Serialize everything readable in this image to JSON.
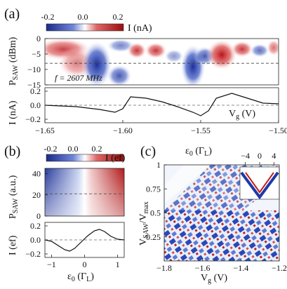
{
  "panels": {
    "a": {
      "label": "(a)",
      "colorbar_ticks": [
        "-0.2",
        "0.0",
        "0.2"
      ],
      "colorbar_label": "I (nA)",
      "map_ylabel": "P",
      "map_ylabel_sub": "SAW",
      "map_ylabel_unit": " (dBm)",
      "annotation": "f = 2607 MHz",
      "trace_ylabel": "I (nA)",
      "xlabel": "V",
      "xlabel_sub": "g",
      "xlabel_unit": " (V)"
    },
    "b": {
      "label": "(b)",
      "colorbar_ticks": [
        "-0.2",
        "0.0",
        "0.2"
      ],
      "colorbar_label": "I (ef)",
      "map_ylabel": "P",
      "map_ylabel_sub": "SAW",
      "map_ylabel_unit": " (a.u.)",
      "trace_ylabel": "I (ef)",
      "xlabel": "ε",
      "xlabel_sub": "0",
      "xlabel_unit": " (Γ",
      "xlabel_unit_sub": "L",
      "xlabel_close": ")"
    },
    "c": {
      "label": "(c)",
      "top_axis_label": "ε",
      "top_axis_sub": "0",
      "top_axis_unit": " (Γ",
      "top_axis_unit_sub": "L",
      "top_axis_close": ")",
      "ylabel": "V",
      "ylabel_sub1": "SAW",
      "ylabel_mid": "/V",
      "ylabel_sub2": "max",
      "xlabel": "V",
      "xlabel_sub": "g",
      "xlabel_unit": " (V)"
    }
  },
  "chart_data": [
    {
      "type": "heatmap",
      "panel": "a",
      "x": {
        "label": "Vg (V)",
        "range": [
          -1.65,
          -1.5
        ]
      },
      "y": {
        "label": "PSAW (dBm)",
        "range": [
          -15,
          0
        ],
        "ticks": [
          -15,
          -10,
          -5,
          0
        ]
      },
      "colorbar": {
        "label": "I (nA)",
        "range": [
          -0.2,
          0.2
        ],
        "colors": [
          "#2233aa",
          "#ffffff",
          "#cc1111"
        ]
      },
      "reference_line_y": -8
    },
    {
      "type": "line",
      "panel": "a",
      "x": [
        -1.65,
        -1.63,
        -1.615,
        -1.605,
        -1.6,
        -1.595,
        -1.585,
        -1.575,
        -1.565,
        -1.555,
        -1.55,
        -1.545,
        -1.54,
        -1.53,
        -1.52,
        -1.51,
        -1.5
      ],
      "y": [
        0.0,
        -0.02,
        -0.06,
        -0.1,
        -0.05,
        0.12,
        0.1,
        0.05,
        -0.02,
        -0.1,
        -0.15,
        -0.08,
        0.1,
        0.17,
        0.1,
        0.03,
        0.02
      ],
      "xlim": [
        -1.65,
        -1.5
      ],
      "xticks": [
        -1.65,
        -1.6,
        -1.55,
        -1.5
      ],
      "ylim": [
        -0.25,
        0.25
      ],
      "yticks": [
        -0.2,
        0.0,
        0.2
      ]
    },
    {
      "type": "heatmap",
      "panel": "b",
      "x": {
        "label": "ε0 (ΓL)",
        "range": [
          -1.2,
          1.2
        ]
      },
      "y": {
        "label": "PSAW (a.u.)",
        "range": [
          0,
          45
        ],
        "ticks": [
          0,
          20,
          40
        ]
      },
      "colorbar": {
        "label": "I (ef)",
        "range": [
          -0.2,
          0.2
        ],
        "colors": [
          "#2233aa",
          "#ffffff",
          "#cc1111"
        ]
      },
      "reference_line_y": 21
    },
    {
      "type": "line",
      "panel": "b",
      "x": [
        -1.2,
        -1.0,
        -0.8,
        -0.6,
        -0.45,
        -0.3,
        -0.1,
        0.1,
        0.3,
        0.45,
        0.6,
        0.8,
        1.0,
        1.2
      ],
      "y": [
        0.0,
        -0.02,
        -0.08,
        -0.14,
        -0.16,
        -0.12,
        -0.03,
        0.06,
        0.13,
        0.15,
        0.12,
        0.05,
        0.01,
        0.0
      ],
      "xlim": [
        -1.2,
        1.2
      ],
      "xticks": [
        -1,
        0,
        1
      ],
      "ylim": [
        -0.25,
        0.25
      ],
      "yticks": [
        -0.2,
        0.0,
        0.2
      ]
    },
    {
      "type": "heatmap",
      "panel": "c",
      "x": {
        "label": "Vg (V)",
        "range": [
          -1.8,
          -1.2
        ],
        "ticks": [
          -1.8,
          -1.6,
          -1.4,
          -1.2
        ]
      },
      "y": {
        "label": "VSAW/Vmax",
        "range": [
          0,
          1
        ],
        "ticks": [
          0.25,
          0.5,
          0.75,
          1
        ]
      },
      "inset_axis": {
        "label": "ε0 (ΓL)",
        "ticks": [
          -4,
          0,
          4
        ]
      }
    }
  ]
}
